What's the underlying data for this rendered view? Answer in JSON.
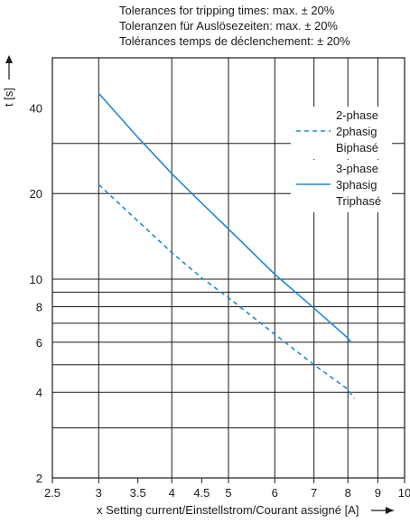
{
  "notes": [
    "Tolerances for tripping times: max. ± 20%",
    "Toleranzen für Auslösezeiten: max. ± 20%",
    "Tolérances temps de déclenchement: ± 20%"
  ],
  "chart_data": {
    "type": "line",
    "x_scale": "log",
    "y_scale": "log",
    "xlim": [
      2.5,
      10
    ],
    "ylim": [
      2,
      60
    ],
    "x_ticks": [
      2.5,
      3,
      3.5,
      4,
      4.5,
      5,
      6,
      7,
      8,
      9,
      10
    ],
    "x_tick_labels": [
      "2.5",
      "3",
      "3.5",
      "4",
      "4.5",
      "5",
      "6",
      "7",
      "8",
      "9",
      "10"
    ],
    "y_ticks": [
      2,
      4,
      6,
      8,
      10,
      20,
      40
    ],
    "y_tick_labels": [
      "2",
      "4",
      "6",
      "8",
      "10",
      "20",
      "40"
    ],
    "y_gridlines": [
      3,
      4,
      5,
      6,
      7,
      8,
      9,
      10,
      20,
      30
    ],
    "x_gridlines": [
      3,
      4,
      5,
      6,
      7,
      8,
      9
    ],
    "xlabel": "x Setting current/Einstellstrom/Courant assigné [A]",
    "ylabel": "t [s]",
    "series": [
      {
        "name_lines": [
          "2-phase",
          "2phasig",
          "Biphasé"
        ],
        "style": "dashed",
        "color": "#1f8ad8",
        "x": [
          3,
          3.5,
          4,
          4.5,
          5,
          6,
          7,
          8,
          8.2
        ],
        "y": [
          21.5,
          16.0,
          12.4,
          10.1,
          8.6,
          6.4,
          5.0,
          4.1,
          3.8
        ]
      },
      {
        "name_lines": [
          "3-phase",
          "3phasig",
          "Triphasé"
        ],
        "style": "solid",
        "color": "#1f8ad8",
        "x": [
          3,
          3.5,
          4,
          4.5,
          5,
          6,
          7,
          8,
          8.1
        ],
        "y": [
          45.0,
          31.5,
          23.5,
          18.5,
          15.0,
          10.4,
          7.9,
          6.2,
          6.0
        ]
      }
    ]
  }
}
